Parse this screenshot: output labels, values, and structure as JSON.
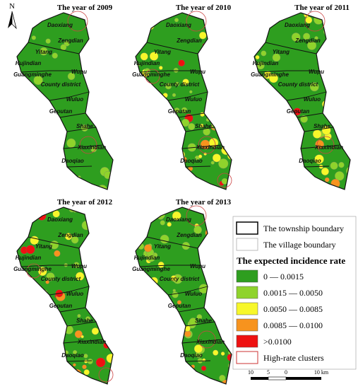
{
  "north": "N",
  "panels": [
    {
      "title": "The year of 2009"
    },
    {
      "title": "The year of 2010"
    },
    {
      "title": "The year of 2011"
    },
    {
      "title": "The year of 2012"
    },
    {
      "title": "The year of 2013"
    }
  ],
  "townships": [
    "Daoxiang",
    "Zengdian",
    "Yitang",
    "Hujindian",
    "Wupu",
    "Guangminghe",
    "County district",
    "Wuluo",
    "Geputan",
    "Shahe",
    "Xiaxindian",
    "Daoqiao"
  ],
  "legend": {
    "township_boundary": "The township boundary",
    "village_boundary": "The village boundary",
    "title": "The expected incidence rate",
    "classes": [
      {
        "label": "0 — 0.0015",
        "color": "#2e9e1f"
      },
      {
        "label": "0.0015 — 0.0050",
        "color": "#8fd32c"
      },
      {
        "label": "0.0050 — 0.0085",
        "color": "#f7f72a"
      },
      {
        "label": "0.0085 — 0.0100",
        "color": "#f7931e"
      },
      {
        "label": ">0.0100",
        "color": "#ee1111"
      }
    ],
    "clusters": "High-rate clusters"
  },
  "scale": {
    "labels": [
      "10",
      "5",
      "0",
      "10 km"
    ]
  }
}
